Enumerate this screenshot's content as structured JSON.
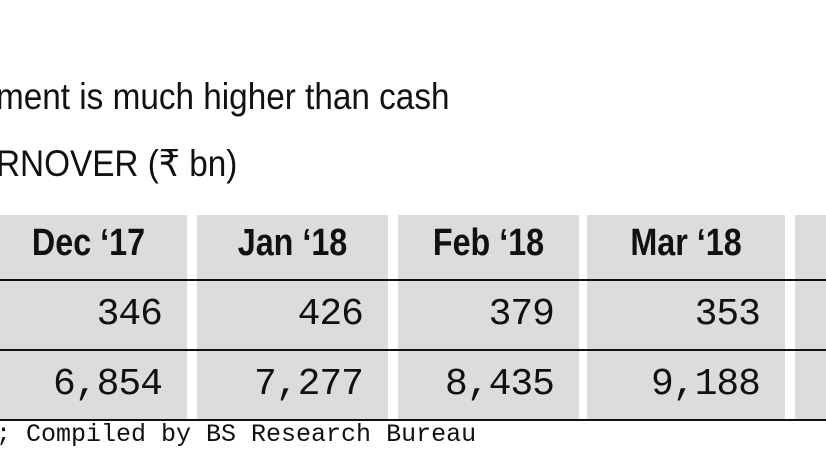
{
  "header": {
    "title_lines": [
      "ment is much higher than cash",
      "RNOVER (₹ bn)"
    ]
  },
  "table": {
    "columns": [
      "Dec ‘17",
      "Jan ‘18",
      "Feb ‘18",
      "Mar ‘18"
    ],
    "rows": [
      [
        "346",
        "426",
        "379",
        "353"
      ],
      [
        "6,854",
        "7,277",
        "8,435",
        "9,188"
      ]
    ]
  },
  "footer": {
    "source": "; Compiled by BS Research Bureau"
  }
}
